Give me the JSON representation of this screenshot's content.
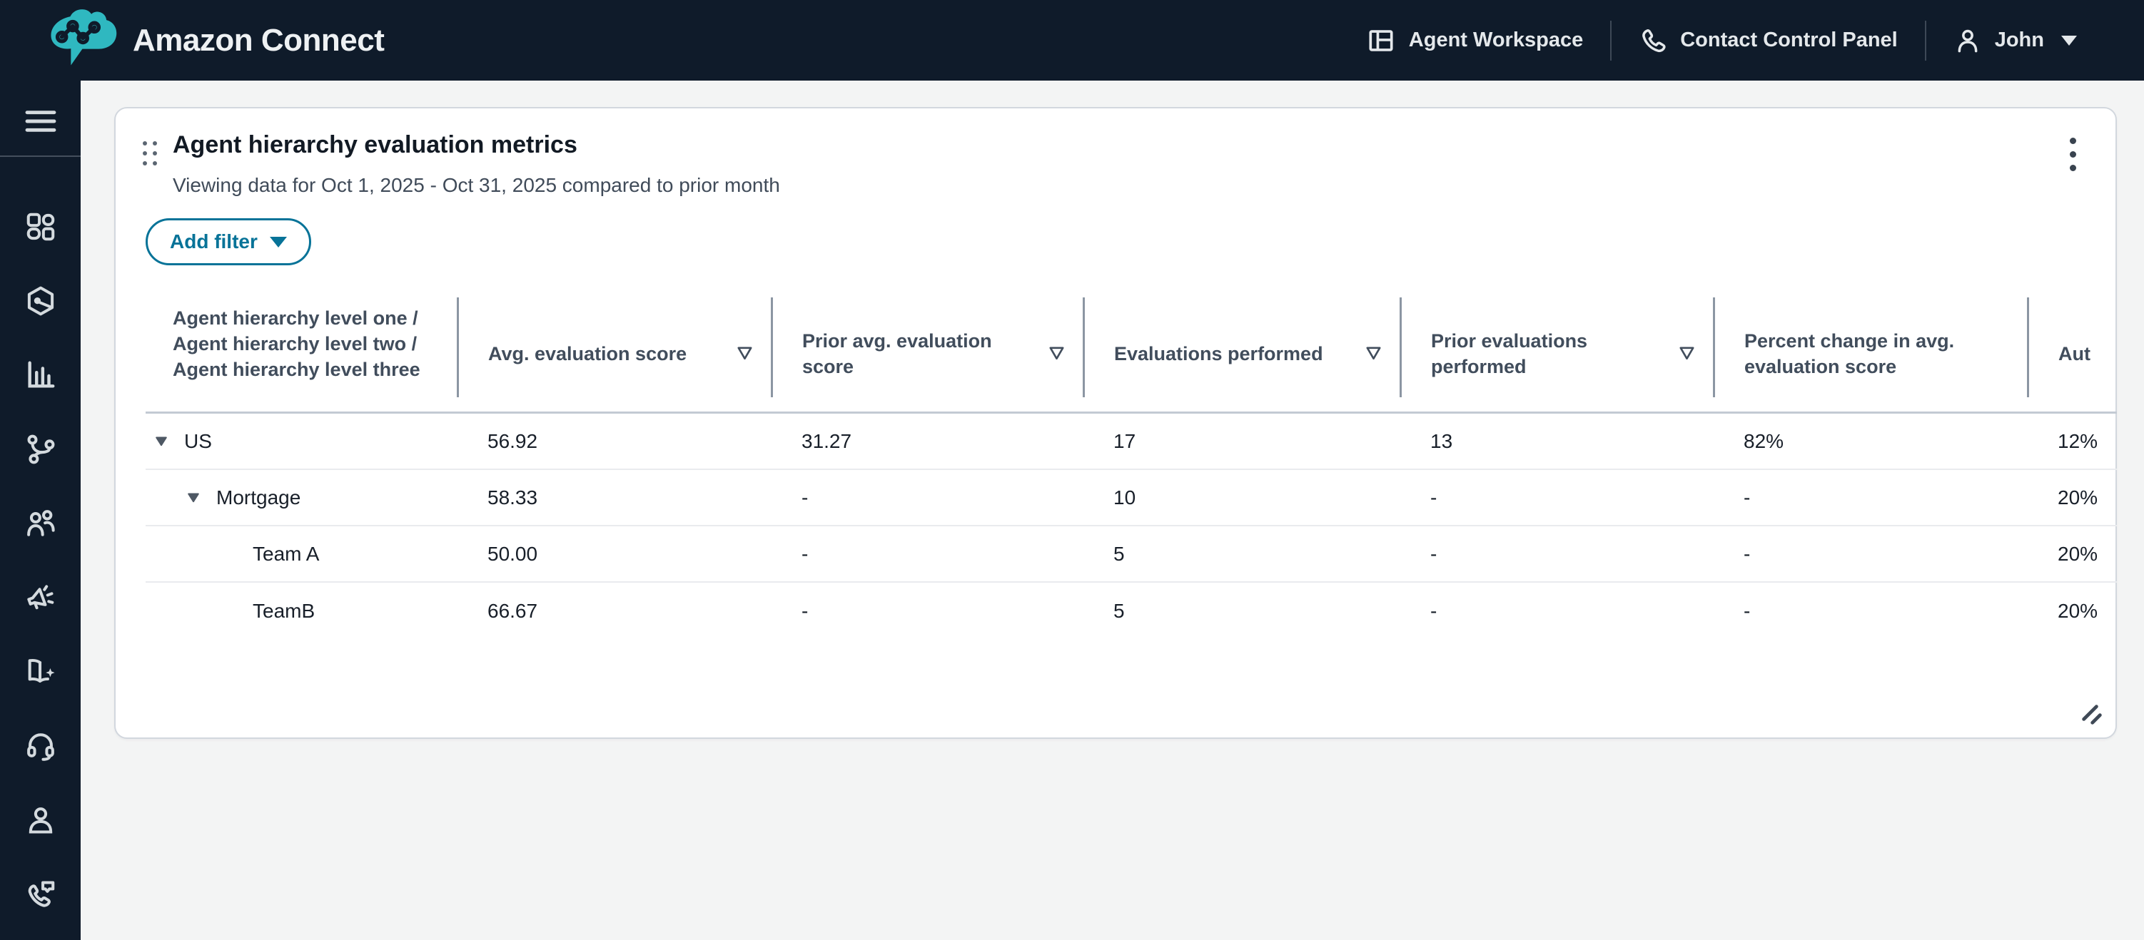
{
  "topbar": {
    "brand": "Amazon Connect",
    "nav": [
      {
        "label": "Agent Workspace",
        "icon": "workspace-layout-icon"
      },
      {
        "label": "Contact Control Panel",
        "icon": "phone-icon"
      },
      {
        "label": "John",
        "icon": "user-icon",
        "caret": "down"
      }
    ]
  },
  "sidebar": {
    "items": [
      "menu-icon",
      "dashboard-icon",
      "routing-hexagon-icon",
      "analytics-bar-chart-icon",
      "flows-branch-icon",
      "users-icon",
      "campaigns-megaphone-icon",
      "knowledge-book-icon",
      "agent-headset-icon",
      "customer-profiles-person-icon",
      "contact-phone-message-icon"
    ]
  },
  "widget": {
    "title": "Agent hierarchy evaluation metrics",
    "subtitle": "Viewing data for Oct 1, 2025 - Oct 31, 2025 compared to prior month",
    "add_filter_label": "Add filter",
    "table": {
      "columns": [
        {
          "label": "Agent hierarchy level one / Agent hierarchy level two / Agent hierarchy level three",
          "sortable": false
        },
        {
          "label": "Avg. evaluation score",
          "sortable": true
        },
        {
          "label": "Prior avg. evaluation score",
          "sortable": true
        },
        {
          "label": "Evaluations performed",
          "sortable": true
        },
        {
          "label": "Prior evaluations performed",
          "sortable": true
        },
        {
          "label": "Percent change in avg. evaluation score",
          "sortable": false
        },
        {
          "label": "Aut",
          "sortable": false,
          "clipped": true
        }
      ],
      "rows": [
        {
          "name": "US",
          "level": 0,
          "expandable": true,
          "values": [
            "56.92",
            "31.27",
            "17",
            "13",
            "82%",
            "12%"
          ]
        },
        {
          "name": "Mortgage",
          "level": 1,
          "expandable": true,
          "values": [
            "58.33",
            "-",
            "10",
            "-",
            "-",
            "20%"
          ]
        },
        {
          "name": "Team A",
          "level": 2,
          "expandable": false,
          "values": [
            "50.00",
            "-",
            "5",
            "-",
            "-",
            "20%"
          ]
        },
        {
          "name": "TeamB",
          "level": 2,
          "expandable": false,
          "values": [
            "66.67",
            "-",
            "5",
            "-",
            "-",
            "20%"
          ]
        }
      ]
    }
  },
  "colors": {
    "topbar_background": "#0f1b2a",
    "accent_teal": "#077398",
    "logo_teal": "#2fb8c0",
    "page_background": "#f3f4f4",
    "card_border": "#d2d7de",
    "header_text": "#414d5c",
    "cell_text": "#181f29"
  }
}
